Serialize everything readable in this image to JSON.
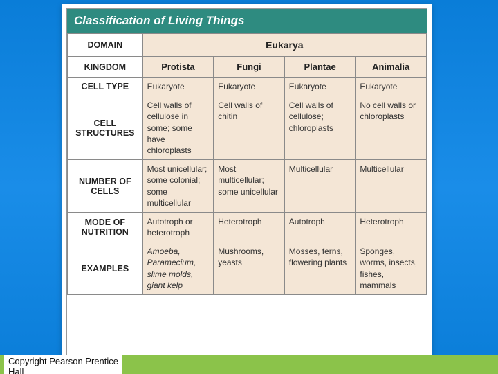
{
  "title": "Classification of Living Things",
  "copyright_line1": "Copyright Pearson Prentice",
  "copyright_line2": "Hall",
  "row_headers": {
    "domain": "DOMAIN",
    "kingdom": "KINGDOM",
    "cell_type": "CELL TYPE",
    "cell_structures": "CELL STRUCTURES",
    "number_of_cells": "NUMBER OF CELLS",
    "mode_of_nutrition": "MODE OF NUTRITION",
    "examples": "EXAMPLES"
  },
  "domain_value": "Eukarya",
  "columns": [
    {
      "kingdom": "Protista",
      "cell_type": "Eukaryote",
      "cell_structures": "Cell walls of cellulose in some; some have chloroplasts",
      "number_of_cells": "Most unicellular; some colonial; some multicellular",
      "mode_of_nutrition": "Autotroph or heterotroph",
      "examples": "Amoeba, Paramecium, slime molds, giant kelp"
    },
    {
      "kingdom": "Fungi",
      "cell_type": "Eukaryote",
      "cell_structures": "Cell walls of chitin",
      "number_of_cells": "Most multicellular; some unicellular",
      "mode_of_nutrition": "Heterotroph",
      "examples": "Mushrooms, yeasts"
    },
    {
      "kingdom": "Plantae",
      "cell_type": "Eukaryote",
      "cell_structures": "Cell walls of cellulose; chloroplasts",
      "number_of_cells": "Multicellular",
      "mode_of_nutrition": "Autotroph",
      "examples": "Mosses, ferns, flowering plants"
    },
    {
      "kingdom": "Animalia",
      "cell_type": "Eukaryote",
      "cell_structures": "No cell walls or chloroplasts",
      "number_of_cells": "Multicellular",
      "mode_of_nutrition": "Heterotroph",
      "examples": "Sponges, worms, insects, fishes, mammals"
    }
  ],
  "colors": {
    "background_gradient_start": "#0a7dd8",
    "title_bar": "#2e8b80",
    "cell_fill": "#f4e6d6",
    "footer_strip": "#8bc34a"
  }
}
